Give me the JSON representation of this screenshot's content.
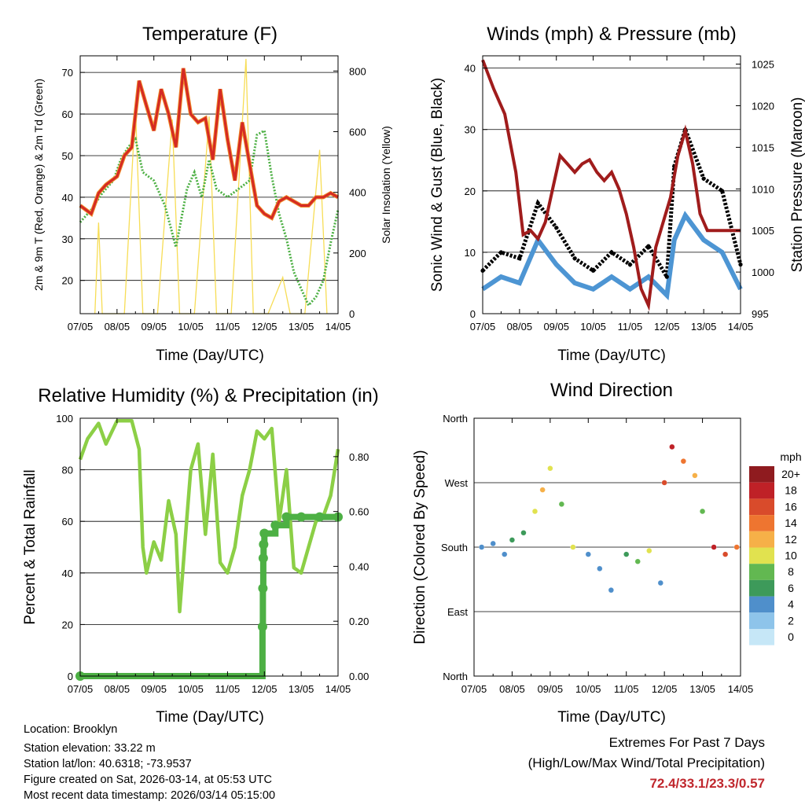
{
  "x_ticks": [
    "07/05",
    "08/05",
    "09/05",
    "10/05",
    "11/05",
    "12/05",
    "13/05",
    "14/05"
  ],
  "temperature": {
    "title": "Temperature (F)",
    "xlabel": "Time (Day/UTC)",
    "ylabel_left": "2m & 9m T (Red, Orange) & 2m Td (Green)",
    "ylabel_right": "Solar Insolation (Yellow)",
    "left_ticks": [
      "20",
      "30",
      "40",
      "50",
      "60",
      "70"
    ],
    "right_ticks": [
      "0",
      "200",
      "400",
      "600",
      "800"
    ]
  },
  "winds": {
    "title": "Winds (mph) & Pressure (mb)",
    "xlabel": "Time (Day/UTC)",
    "ylabel_left": "Sonic Wind & Gust (Blue, Black)",
    "ylabel_right": "Station Pressure (Maroon)",
    "left_ticks": [
      "0",
      "10",
      "20",
      "30",
      "40"
    ],
    "right_ticks": [
      "995",
      "1000",
      "1005",
      "1010",
      "1015",
      "1020",
      "1025"
    ]
  },
  "humidity": {
    "title": "Relative Humidity (%) & Precipitation (in)",
    "xlabel": "Time (Day/UTC)",
    "ylabel_left": "Percent & Total Rainfall",
    "left_ticks": [
      "0",
      "20",
      "40",
      "60",
      "80",
      "100"
    ],
    "right_ticks": [
      "0.00",
      "0.20",
      "0.40",
      "0.60",
      "0.80"
    ]
  },
  "direction": {
    "title": "Wind Direction",
    "xlabel": "Time (Day/UTC)",
    "ylabel_left": "Direction (Colored By Speed)",
    "dir_ticks": [
      "North",
      "East",
      "South",
      "West",
      "North"
    ],
    "legend_title": "mph",
    "legend_labels": [
      "0",
      "2",
      "4",
      "6",
      "8",
      "10",
      "12",
      "14",
      "16",
      "18",
      "20+"
    ],
    "legend_colors": [
      "#c6e7f7",
      "#8ec4ea",
      "#4f8fcb",
      "#3d9a5a",
      "#62b851",
      "#e1e24f",
      "#f6b048",
      "#ee7530",
      "#d94b2b",
      "#bf2127",
      "#8f1b1f"
    ]
  },
  "info": {
    "location": "Location: Brooklyn",
    "elevation": "Station elevation: 33.22 m",
    "latlon": "Station lat/lon: 40.6318; -73.9537",
    "created": "Figure created on Sat, 2026-03-14, at 05:53 UTC",
    "recent": "Most recent data timestamp: 2026/03/14 05:15:00"
  },
  "extremes": {
    "title": "Extremes For Past 7 Days",
    "subtitle": "(High/Low/Max Wind/Total Precipitation)",
    "values": "72.4/33.1/23.3/0.57"
  },
  "colors": {
    "temp_red": "#d42a24",
    "temp_orange": "#f08b2a",
    "dewpoint": "#4db044",
    "solar": "#f7dd55",
    "pressure": "#a01c1c",
    "wind_blue": "#4d95d3",
    "gust": "#000000",
    "rh": "#8ccf46",
    "precip": "#4db044"
  },
  "chart_data": [
    {
      "type": "line",
      "title": "Temperature (F)",
      "xlabel": "Time (Day/UTC)",
      "ylabel": "2m & 9m T (Red, Orange) & 2m Td (Green)",
      "ylabel_right": "Solar Insolation (Yellow)",
      "xlim": [
        0,
        7
      ],
      "ylim": [
        12,
        74
      ],
      "ylim_right": [
        0,
        850
      ],
      "series": [
        {
          "name": "2m T",
          "axis": "left",
          "x": [
            0,
            0.3,
            0.5,
            0.7,
            1,
            1.2,
            1.4,
            1.6,
            1.8,
            2,
            2.2,
            2.4,
            2.6,
            2.8,
            3,
            3.2,
            3.4,
            3.6,
            3.8,
            4,
            4.2,
            4.4,
            4.6,
            4.8,
            5,
            5.2,
            5.4,
            5.6,
            5.8,
            6,
            6.2,
            6.4,
            6.6,
            6.8,
            7
          ],
          "y": [
            38,
            36,
            41,
            43,
            45,
            50,
            52,
            68,
            62,
            56,
            66,
            60,
            52,
            71,
            60,
            58,
            59,
            49,
            66,
            54,
            44,
            58,
            48,
            38,
            36,
            35,
            39,
            40,
            39,
            38,
            38,
            40,
            40,
            41,
            40
          ]
        },
        {
          "name": "Td",
          "axis": "left",
          "x": [
            0,
            0.3,
            0.6,
            0.9,
            1.1,
            1.3,
            1.5,
            1.7,
            2,
            2.3,
            2.6,
            2.9,
            3.1,
            3.3,
            3.5,
            3.7,
            4,
            4.3,
            4.6,
            4.8,
            5,
            5.2,
            5.4,
            5.6,
            5.8,
            6,
            6.2,
            6.4,
            6.6,
            6.8,
            7
          ],
          "y": [
            34,
            37,
            41,
            44,
            49,
            52,
            54,
            46,
            44,
            38,
            28,
            42,
            46,
            40,
            49,
            42,
            40,
            42,
            44,
            55,
            56,
            45,
            36,
            30,
            22,
            18,
            14,
            16,
            20,
            29,
            37
          ]
        },
        {
          "name": "Solar Insolation",
          "axis": "right",
          "x": [
            0.4,
            0.5,
            0.6,
            1.2,
            1.5,
            1.7,
            2.1,
            2.5,
            2.7,
            3.1,
            3.5,
            3.7,
            4.1,
            4.5,
            4.7,
            5.1,
            5.5,
            5.7,
            6.1,
            6.5,
            6.7
          ],
          "y": [
            0,
            300,
            0,
            0,
            680,
            0,
            0,
            640,
            0,
            0,
            650,
            0,
            0,
            840,
            0,
            0,
            120,
            0,
            0,
            540,
            0
          ]
        }
      ]
    },
    {
      "type": "line",
      "title": "Winds (mph) & Pressure (mb)",
      "xlabel": "Time (Day/UTC)",
      "ylabel": "Sonic Wind & Gust (Blue, Black)",
      "ylabel_right": "Station Pressure (Maroon)",
      "xlim": [
        0,
        7
      ],
      "ylim": [
        0,
        42
      ],
      "ylim_right": [
        995,
        1026
      ],
      "series": [
        {
          "name": "Station Pressure",
          "axis": "right",
          "x": [
            0,
            0.3,
            0.6,
            0.9,
            1.1,
            1.3,
            1.5,
            1.7,
            1.9,
            2.1,
            2.3,
            2.5,
            2.7,
            2.9,
            3.1,
            3.3,
            3.5,
            3.7,
            3.9,
            4.1,
            4.3,
            4.5,
            4.7,
            4.9,
            5.1,
            5.3,
            5.5,
            5.7,
            5.9,
            6.1,
            6.3,
            6.5,
            6.7,
            6.9,
            7
          ],
          "y": [
            1025.5,
            1022,
            1019,
            1012,
            1004.5,
            1005,
            1004,
            1006,
            1010,
            1014,
            1013,
            1012,
            1013,
            1013.5,
            1012,
            1011,
            1012,
            1010,
            1007,
            1003,
            998,
            996,
            1003,
            1006,
            1009,
            1014,
            1017,
            1013,
            1007,
            1005,
            1005,
            1005,
            1005,
            1005,
            1005
          ]
        },
        {
          "name": "Sonic Wind",
          "axis": "left",
          "x": [
            0,
            0.5,
            1,
            1.5,
            2,
            2.5,
            3,
            3.5,
            4,
            4.5,
            5,
            5.2,
            5.5,
            6,
            6.5,
            7
          ],
          "y": [
            4,
            6,
            5,
            12,
            8,
            5,
            4,
            6,
            4,
            6,
            3,
            12,
            16,
            12,
            10,
            4
          ]
        },
        {
          "name": "Gust",
          "axis": "left",
          "x": [
            0,
            0.5,
            1,
            1.5,
            2,
            2.5,
            3,
            3.5,
            4,
            4.5,
            5,
            5.2,
            5.5,
            6,
            6.5,
            7
          ],
          "y": [
            7,
            10,
            9,
            18,
            14,
            9,
            7,
            10,
            8,
            11,
            6,
            24,
            30,
            22,
            20,
            8
          ]
        }
      ]
    },
    {
      "type": "line",
      "title": "Relative Humidity (%) & Precipitation (in)",
      "xlabel": "Time (Day/UTC)",
      "ylabel": "Percent & Total Rainfall",
      "xlim": [
        0,
        7
      ],
      "ylim": [
        0,
        100
      ],
      "ylim_right": [
        0,
        0.94
      ],
      "series": [
        {
          "name": "Relative Humidity",
          "axis": "left",
          "x": [
            0,
            0.2,
            0.5,
            0.7,
            1,
            1.2,
            1.4,
            1.6,
            1.7,
            1.8,
            2,
            2.2,
            2.4,
            2.6,
            2.7,
            2.9,
            3,
            3.2,
            3.4,
            3.6,
            3.8,
            4,
            4.2,
            4.4,
            4.6,
            4.8,
            5,
            5.2,
            5.4,
            5.6,
            5.8,
            6,
            6.2,
            6.4,
            6.6,
            6.8,
            7
          ],
          "y": [
            84,
            92,
            98,
            90,
            99,
            99,
            99,
            88,
            50,
            40,
            52,
            45,
            68,
            55,
            25,
            62,
            80,
            90,
            55,
            86,
            44,
            40,
            50,
            70,
            80,
            95,
            92,
            96,
            60,
            80,
            42,
            40,
            50,
            60,
            62,
            70,
            88
          ]
        },
        {
          "name": "Total Precipitation",
          "axis": "right",
          "x": [
            0,
            4.95,
            4.96,
            4.97,
            4.98,
            5,
            5.3,
            5.6,
            6,
            6.5,
            7
          ],
          "y": [
            0,
            0.18,
            0.32,
            0.43,
            0.48,
            0.52,
            0.55,
            0.58,
            0.58,
            0.58,
            0.58
          ]
        }
      ]
    },
    {
      "type": "scatter",
      "title": "Wind Direction",
      "xlabel": "Time (Day/UTC)",
      "ylabel": "Direction (Colored By Speed)",
      "xlim": [
        0,
        7
      ],
      "ylim": [
        0,
        360
      ],
      "colorbar": {
        "label": "mph",
        "levels": [
          0,
          2,
          4,
          6,
          8,
          10,
          12,
          14,
          16,
          18,
          20
        ]
      },
      "series": [
        {
          "name": "Direction",
          "x": [
            0.2,
            0.5,
            0.8,
            1.0,
            1.3,
            1.6,
            1.8,
            2.0,
            2.3,
            2.6,
            3.0,
            3.3,
            3.6,
            4.0,
            4.3,
            4.6,
            4.9,
            5.0,
            5.2,
            5.5,
            5.8,
            6.0,
            6.3,
            6.6,
            6.9
          ],
          "y": [
            180,
            185,
            170,
            190,
            200,
            230,
            260,
            290,
            240,
            180,
            170,
            150,
            120,
            170,
            160,
            175,
            130,
            270,
            320,
            300,
            280,
            230,
            180,
            170,
            180
          ],
          "speed": [
            3,
            4,
            4,
            5,
            6,
            10,
            12,
            9,
            7,
            10,
            4,
            3,
            3,
            5,
            8,
            9,
            4,
            16,
            18,
            14,
            12,
            8,
            18,
            16,
            14
          ]
        }
      ]
    }
  ]
}
